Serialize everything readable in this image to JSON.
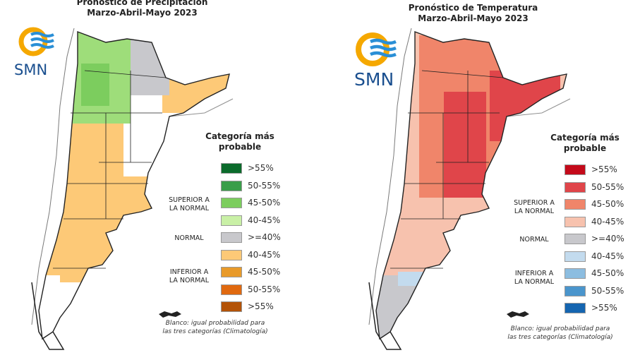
{
  "panels": [
    {
      "title_line1": "Pronóstico de Precipitación",
      "title_line2": "Marzo-Abril-Mayo 2023",
      "logo_text": "SMN",
      "legend": {
        "title_line1": "Categoría más",
        "title_line2": "probable",
        "superior_label_1": "SUPERIOR A",
        "superior_label_2": "LA NORMAL",
        "normal_label": "NORMAL",
        "inferior_label_1": "INFERIOR A",
        "inferior_label_2": "LA NORMAL",
        "items": [
          {
            "label": ">55%",
            "color": "#0b6b2b"
          },
          {
            "label": "50-55%",
            "color": "#3a9e4a"
          },
          {
            "label": "45-50%",
            "color": "#7ccd5e"
          },
          {
            "label": "40-45%",
            "color": "#c9f0a6"
          },
          {
            "label": ">=40%",
            "color": "#c8c8cc"
          },
          {
            "label": "40-45%",
            "color": "#fdc977"
          },
          {
            "label": "45-50%",
            "color": "#e89a2a"
          },
          {
            "label": "50-55%",
            "color": "#e0690f"
          },
          {
            "label": ">55%",
            "color": "#b35308"
          }
        ],
        "note_line1": "Blanco: igual probabilidad para",
        "note_line2": "las tres categorías (Climatología)"
      }
    },
    {
      "title_line1": "Pronóstico de Temperatura",
      "title_line2": "Marzo-Abril-Mayo 2023",
      "logo_text": "SMN",
      "legend": {
        "title_line1": "Categoría más",
        "title_line2": "probable",
        "superior_label_1": "SUPERIOR A",
        "superior_label_2": "LA NORMAL",
        "normal_label": "NORMAL",
        "inferior_label_1": "INFERIOR A",
        "inferior_label_2": "LA NORMAL",
        "items": [
          {
            "label": ">55%",
            "color": "#c40a1a"
          },
          {
            "label": "50-55%",
            "color": "#e0454a"
          },
          {
            "label": "45-50%",
            "color": "#f0856a"
          },
          {
            "label": "40-45%",
            "color": "#f7c2ae"
          },
          {
            "label": ">=40%",
            "color": "#c8c8cc"
          },
          {
            "label": "40-45%",
            "color": "#c3dbee"
          },
          {
            "label": "45-50%",
            "color": "#8cbde0"
          },
          {
            "label": "50-55%",
            "color": "#4a95cc"
          },
          {
            "label": ">55%",
            "color": "#1565b0"
          }
        ],
        "note_line1": "Blanco: igual probabilidad para",
        "note_line2": "las tres categorías (Climatología)"
      }
    }
  ]
}
